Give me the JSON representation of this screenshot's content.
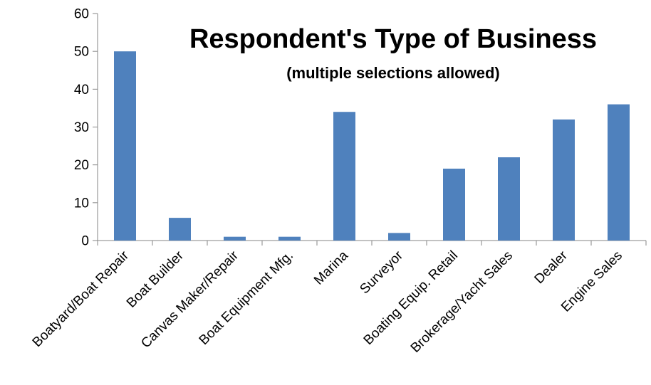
{
  "chart_data": {
    "type": "bar",
    "title": "Respondent's Type of Business",
    "subtitle": "(multiple selections allowed)",
    "categories": [
      "Boatyard/Boat Repair",
      "Boat Builder",
      "Canvas Maker/Repair",
      "Boat Equipment Mfg.",
      "Marina",
      "Surveyor",
      "Boating Equip. Retail",
      "Brokerage/Yacht Sales",
      "Dealer",
      "Engine Sales"
    ],
    "values": [
      50,
      6,
      1,
      1,
      34,
      2,
      19,
      22,
      32,
      36
    ],
    "ylim": [
      0,
      60
    ],
    "yticks": [
      "0",
      "10",
      "20",
      "30",
      "40",
      "50",
      "60"
    ],
    "grid": false,
    "legend": "none",
    "bar_color": "#4f81bd"
  }
}
